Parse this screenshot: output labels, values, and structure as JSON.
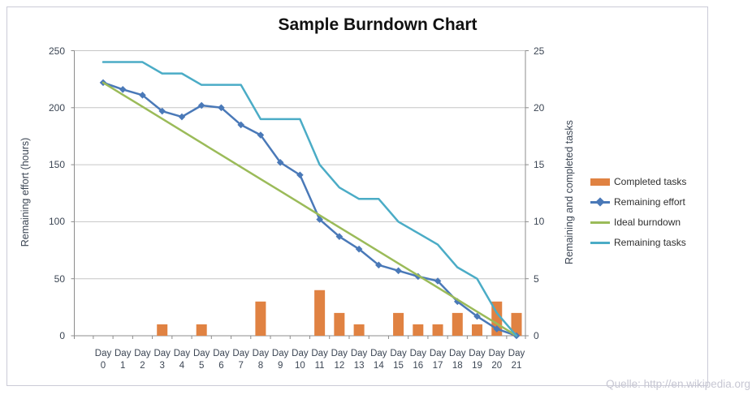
{
  "source_note": "Quelle: http://en.wikipedia.org",
  "colors": {
    "gridline": "#C6C6C6",
    "axis": "#8C8C8C",
    "frame": "#CBCBD7",
    "title_text": "#111111",
    "axis_text": "#3C4654",
    "source_text": "#C7C7D3",
    "completed_orange": "#E08242",
    "effort_blue": "#4A79B8",
    "ideal_green": "#9BBB59",
    "tasks_teal": "#4BACC6"
  },
  "chart_data": {
    "type": "combo",
    "title": "Sample Burndown Chart",
    "categories": [
      "Day 0",
      "Day 1",
      "Day 2",
      "Day 3",
      "Day 4",
      "Day 5",
      "Day 6",
      "Day 7",
      "Day 8",
      "Day 9",
      "Day 10",
      "Day 11",
      "Day 12",
      "Day 13",
      "Day 14",
      "Day 15",
      "Day 16",
      "Day 17",
      "Day 18",
      "Day 19",
      "Day 20",
      "Day 21"
    ],
    "left_axis": {
      "label": "Remaining effort (hours)",
      "ticks": [
        0,
        50,
        100,
        150,
        200,
        250
      ],
      "range": [
        0,
        250
      ]
    },
    "right_axis": {
      "label": "Remaining and completed tasks",
      "ticks": [
        0,
        5,
        10,
        15,
        20,
        25
      ],
      "range": [
        0,
        25
      ]
    },
    "grid": true,
    "legend_position": "right",
    "series": [
      {
        "name": "Completed tasks",
        "type": "bar",
        "axis": "right",
        "color": "#E08242",
        "values": [
          0,
          0,
          0,
          1,
          0,
          1,
          0,
          0,
          3,
          0,
          0,
          4,
          2,
          1,
          0,
          2,
          1,
          1,
          2,
          1,
          3,
          2
        ]
      },
      {
        "name": "Remaining effort",
        "type": "line",
        "marker": "diamond",
        "axis": "left",
        "color": "#4A79B8",
        "values": [
          222,
          216,
          211,
          197,
          192,
          202,
          200,
          185,
          176,
          152,
          141,
          102,
          87,
          76,
          62,
          57,
          52,
          48,
          30,
          17,
          6,
          0
        ]
      },
      {
        "name": "Ideal burndown",
        "type": "line",
        "axis": "left",
        "color": "#9BBB59",
        "values": [
          222,
          211.4,
          200.9,
          190.3,
          179.7,
          169.1,
          158.6,
          148,
          137.4,
          126.9,
          116.3,
          105.7,
          95.1,
          84.6,
          74,
          63.4,
          52.9,
          42.3,
          31.7,
          21.1,
          10.6,
          0
        ]
      },
      {
        "name": "Remaining tasks",
        "type": "line",
        "axis": "right",
        "color": "#4BACC6",
        "values": [
          24,
          24,
          24,
          23,
          23,
          22,
          22,
          22,
          19,
          19,
          19,
          15,
          13,
          12,
          12,
          10,
          9,
          8,
          6,
          5,
          2,
          0
        ]
      }
    ]
  }
}
